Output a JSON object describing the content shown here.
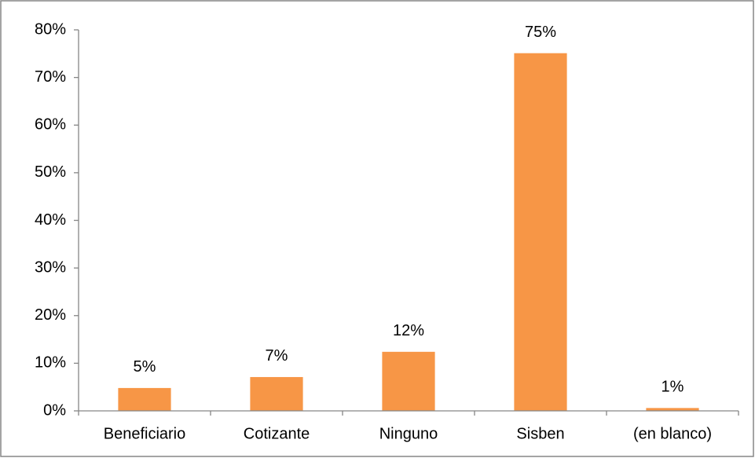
{
  "chart_data": {
    "type": "bar",
    "categories": [
      "Beneficiario",
      "Cotizante",
      "Ninguno",
      "Sisben",
      "(en blanco)"
    ],
    "values": [
      4.8,
      7.1,
      12.4,
      75.1,
      0.6
    ],
    "value_labels": [
      "5%",
      "7%",
      "12%",
      "75%",
      "1%"
    ],
    "color": "#f79646",
    "ylim": [
      0,
      80
    ],
    "yticks": [
      {
        "value": 0,
        "label": "0%"
      },
      {
        "value": 10,
        "label": "10%"
      },
      {
        "value": 20,
        "label": "20%"
      },
      {
        "value": 30,
        "label": "30%"
      },
      {
        "value": 40,
        "label": "40%"
      },
      {
        "value": 50,
        "label": "50%"
      },
      {
        "value": 60,
        "label": "60%"
      },
      {
        "value": 70,
        "label": "70%"
      },
      {
        "value": 80,
        "label": "80%"
      }
    ],
    "grid": false
  }
}
